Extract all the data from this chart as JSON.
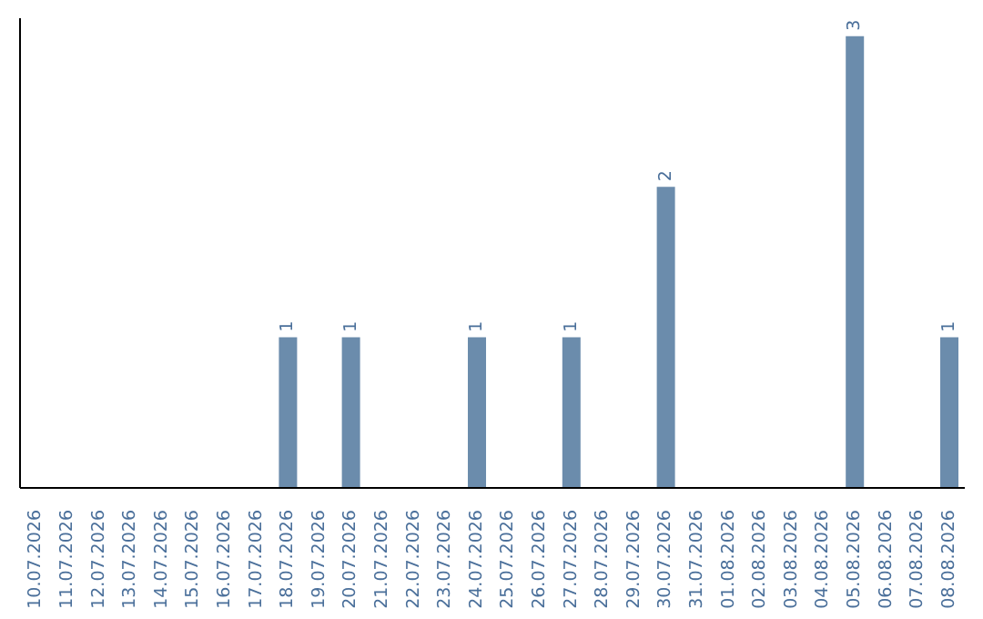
{
  "chart_data": {
    "type": "bar",
    "categories": [
      "10.07.2026",
      "11.07.2026",
      "12.07.2026",
      "13.07.2026",
      "14.07.2026",
      "15.07.2026",
      "16.07.2026",
      "17.07.2026",
      "18.07.2026",
      "19.07.2026",
      "20.07.2026",
      "21.07.2026",
      "22.07.2026",
      "23.07.2026",
      "24.07.2026",
      "25.07.2026",
      "26.07.2026",
      "27.07.2026",
      "28.07.2026",
      "29.07.2026",
      "30.07.2026",
      "31.07.2026",
      "01.08.2026",
      "02.08.2026",
      "03.08.2026",
      "04.08.2026",
      "05.08.2026",
      "06.08.2026",
      "07.08.2026",
      "08.08.2026"
    ],
    "values": [
      0,
      0,
      0,
      0,
      0,
      0,
      0,
      0,
      1,
      0,
      1,
      0,
      0,
      0,
      1,
      0,
      0,
      1,
      0,
      0,
      2,
      0,
      0,
      0,
      0,
      0,
      3,
      0,
      0,
      1
    ],
    "value_labels": [
      null,
      null,
      null,
      null,
      null,
      null,
      null,
      null,
      "1",
      null,
      "1",
      null,
      null,
      null,
      "1",
      null,
      null,
      "1",
      null,
      null,
      "2",
      null,
      null,
      null,
      null,
      null,
      "3",
      null,
      null,
      "1"
    ],
    "color": "#6b8cac"
  }
}
